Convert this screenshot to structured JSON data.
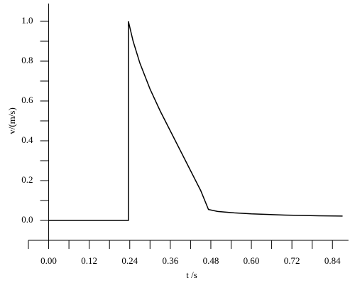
{
  "chart_data": {
    "type": "line",
    "xlabel": "t /s",
    "ylabel": "v/(m/s)",
    "x": [
      0,
      0.236,
      0.236,
      0.25,
      0.27,
      0.3,
      0.33,
      0.36,
      0.39,
      0.42,
      0.45,
      0.473,
      0.5,
      0.55,
      0.6,
      0.7,
      0.8,
      0.87
    ],
    "series": [
      {
        "color": "#000000",
        "values": [
          0,
          0,
          1.0,
          0.9,
          0.79,
          0.66,
          0.55,
          0.45,
          0.35,
          0.25,
          0.15,
          0.055,
          0.045,
          0.038,
          0.033,
          0.027,
          0.023,
          0.022
        ]
      }
    ],
    "xlim": [
      -0.06,
      0.9
    ],
    "ylim": [
      -0.1,
      1.1
    ],
    "xticks": [
      {
        "value": 0,
        "label": "0.00"
      },
      0.12,
      0.24,
      0.36,
      0.48,
      {
        "value": 0.6,
        "label": "0.60"
      },
      0.72,
      0.84
    ],
    "xminorticks": [
      -0.06,
      0.06,
      0.18,
      0.3,
      0.42,
      0.54,
      0.66,
      0.78
    ],
    "yticks": [
      {
        "value": 0,
        "label": "0.0"
      },
      0.2,
      0.4,
      0.6,
      0.8,
      {
        "value": 1,
        "label": "1.0"
      }
    ],
    "yminorticks": [
      -0.1,
      0.1,
      0.3,
      0.5,
      0.7,
      0.9
    ],
    "grid": false
  }
}
